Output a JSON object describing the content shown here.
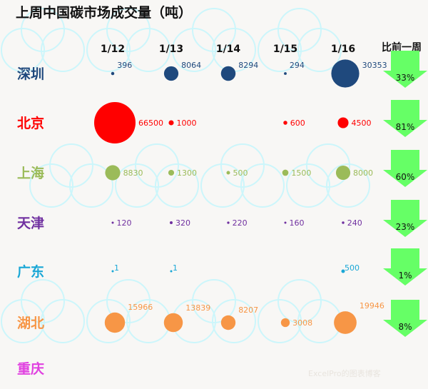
{
  "chart_data": {
    "type": "scatter",
    "title": "上周中国碳市场成交量（吨）",
    "dates": [
      "1/12",
      "1/13",
      "1/14",
      "1/15",
      "1/16"
    ],
    "compare_header": "比前一周",
    "series": [
      {
        "name": "深圳",
        "color": "#1f497d",
        "values": [
          396,
          8064,
          8294,
          294,
          30353
        ],
        "change": "33%"
      },
      {
        "name": "北京",
        "color": "#ff0000",
        "values": [
          66500,
          1000,
          null,
          600,
          4500
        ],
        "change": "81%"
      },
      {
        "name": "上海",
        "color": "#9bbb59",
        "values": [
          8830,
          1300,
          500,
          1500,
          8000
        ],
        "change": "60%"
      },
      {
        "name": "天津",
        "color": "#7030a0",
        "values": [
          120,
          320,
          220,
          160,
          240
        ],
        "change": "23%"
      },
      {
        "name": "广东",
        "color": "#1aa7d6",
        "values": [
          1,
          1,
          null,
          null,
          500
        ],
        "change": "1%"
      },
      {
        "name": "湖北",
        "color": "#f79646",
        "values": [
          15966,
          13839,
          8207,
          3008,
          19946
        ],
        "change": "8%"
      },
      {
        "name": "重庆",
        "color": "#e040e0",
        "values": [
          null,
          null,
          null,
          null,
          null
        ],
        "change": ""
      }
    ],
    "arrow_color": "#66ff66"
  },
  "watermark": "ExcelPro的图表博客"
}
